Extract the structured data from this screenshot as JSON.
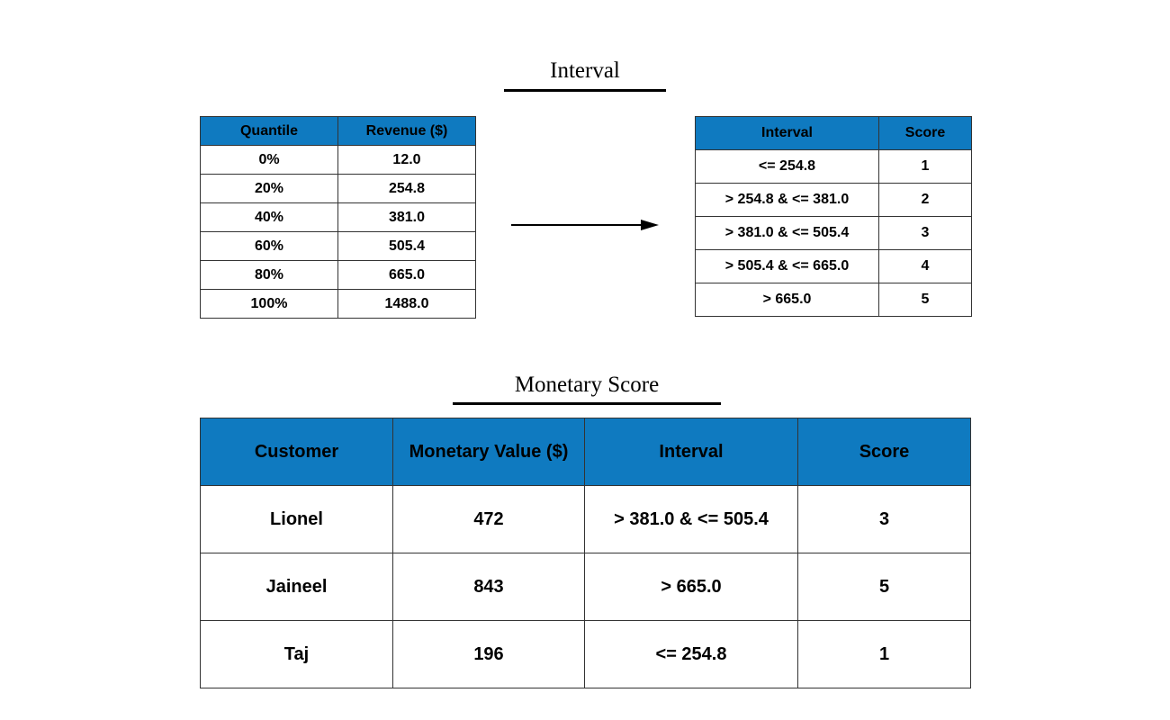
{
  "interval_section": {
    "title": "Interval",
    "quantile_table": {
      "headers": [
        "Quantile",
        "Revenue ($)"
      ],
      "rows": [
        [
          "0%",
          "12.0"
        ],
        [
          "20%",
          "254.8"
        ],
        [
          "40%",
          "381.0"
        ],
        [
          "60%",
          "505.4"
        ],
        [
          "80%",
          "665.0"
        ],
        [
          "100%",
          "1488.0"
        ]
      ]
    },
    "interval_table": {
      "headers": [
        "Interval",
        "Score"
      ],
      "rows": [
        [
          "<= 254.8",
          "1"
        ],
        [
          "> 254.8 & <= 381.0",
          "2"
        ],
        [
          "> 381.0 & <= 505.4",
          "3"
        ],
        [
          "> 505.4 & <= 665.0",
          "4"
        ],
        [
          "> 665.0",
          "5"
        ]
      ]
    }
  },
  "monetary_section": {
    "title": "Monetary Score",
    "table": {
      "headers": [
        "Customer",
        "Monetary Value ($)",
        "Interval",
        "Score"
      ],
      "rows": [
        [
          "Lionel",
          "472",
          "> 381.0 & <= 505.4",
          "3"
        ],
        [
          "Jaineel",
          "843",
          "> 665.0",
          "5"
        ],
        [
          "Taj",
          "196",
          "<= 254.8",
          "1"
        ]
      ]
    }
  },
  "colors": {
    "header_fill": "#0f7ac0",
    "border": "#333333",
    "text": "#000000"
  }
}
